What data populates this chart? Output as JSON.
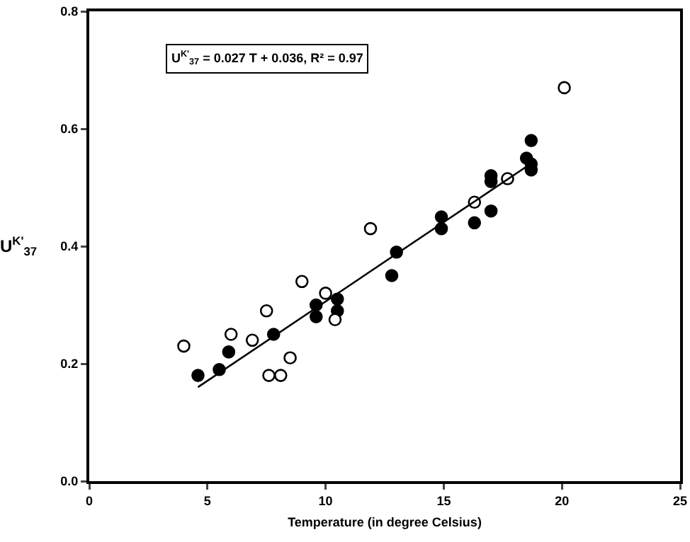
{
  "chart_data": {
    "type": "scatter",
    "xlabel": "Temperature (in degree Celsius)",
    "ylabel": "U$^{K'}$$_{37}$",
    "annotations": [
      "U$^{K'}$$_{37}$ = 0.027 T + 0.036, R² = 0.97"
    ],
    "series": [
      {
        "color": "#000000",
        "x": [
          4.6,
          5.5,
          5.9,
          7.8,
          9.6,
          9.6,
          10.5,
          10.5,
          12.8,
          13.0,
          14.9,
          14.9,
          16.3,
          17.0,
          17.0,
          17.0,
          18.5,
          18.7,
          18.7,
          18.7
        ],
        "values": [
          0.18,
          0.19,
          0.22,
          0.25,
          0.28,
          0.3,
          0.29,
          0.31,
          0.35,
          0.39,
          0.43,
          0.45,
          0.44,
          0.46,
          0.51,
          0.52,
          0.55,
          0.53,
          0.54,
          0.58
        ]
      },
      {
        "color": "#ffffff",
        "x": [
          4.0,
          6.0,
          6.9,
          7.5,
          7.6,
          8.1,
          8.5,
          9.0,
          10.0,
          10.4,
          11.9,
          16.3,
          17.7,
          20.1
        ],
        "values": [
          0.23,
          0.25,
          0.24,
          0.29,
          0.18,
          0.18,
          0.21,
          0.34,
          0.32,
          0.275,
          0.43,
          0.475,
          0.515,
          0.67
        ]
      },
      {
        "type": "line",
        "marker": "none",
        "color": "#000000",
        "x": [
          4.6,
          18.7
        ],
        "values": [
          0.16,
          0.541
        ]
      }
    ],
    "xlim": [
      0,
      25
    ],
    "xticks": [
      0,
      5,
      10,
      15,
      20,
      25
    ],
    "ylim": [
      0,
      0.8
    ],
    "yticks": [
      {
        "value": 0,
        "label": "0.0"
      },
      {
        "value": 0.2,
        "label": "0.2"
      },
      {
        "value": 0.4,
        "label": "0.4"
      },
      {
        "value": 0.6,
        "label": "0.6"
      },
      {
        "value": 0.8,
        "label": "0.8"
      }
    ],
    "grid": false,
    "legend": false,
    "marker": "circle",
    "line_style": "solid"
  }
}
